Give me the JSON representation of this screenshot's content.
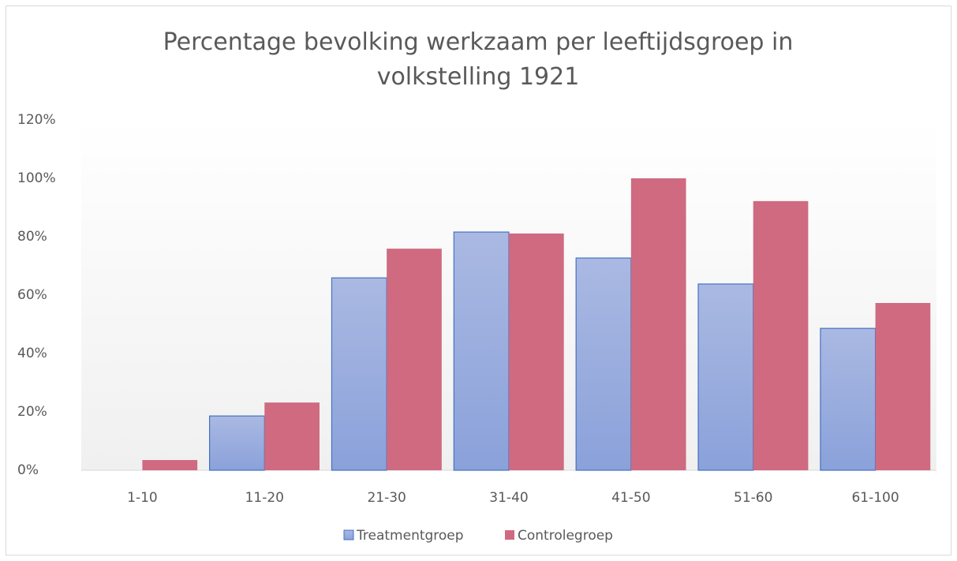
{
  "chart_data": {
    "type": "bar",
    "title": "Percentage bevolking werkzaam per leeftijdsgroep in volkstelling 1921",
    "categories": [
      "1-10",
      "11-20",
      "21-30",
      "31-40",
      "41-50",
      "51-60",
      "61-100"
    ],
    "series": [
      {
        "name": "Treatmentgroep",
        "color": "#8fa8dc",
        "values": [
          0,
          18.6,
          65.9,
          81.6,
          72.7,
          63.8,
          48.6
        ]
      },
      {
        "name": "Controlegroep",
        "color": "#cf6a80",
        "values": [
          3.5,
          23.2,
          75.9,
          81.1,
          100,
          92.2,
          57.3
        ]
      }
    ],
    "ylim": [
      0,
      120
    ],
    "yticks": [
      {
        "value": 0,
        "label": "0%"
      },
      {
        "value": 20,
        "label": "20%"
      },
      {
        "value": 40,
        "label": "40%"
      },
      {
        "value": 60,
        "label": "60%"
      },
      {
        "value": 80,
        "label": "80%"
      },
      {
        "value": 100,
        "label": "100%"
      },
      {
        "value": 120,
        "label": "120%"
      }
    ],
    "grid": false,
    "legend": "bottom"
  }
}
